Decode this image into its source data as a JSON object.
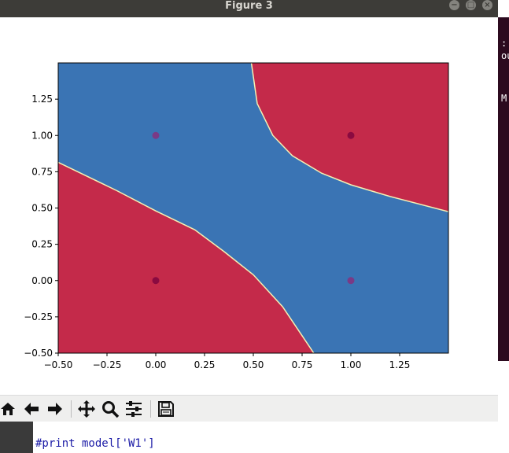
{
  "window": {
    "title": "Figure 3",
    "buttons": {
      "minimize": "−",
      "maximize": "□",
      "close": "×"
    }
  },
  "terminal": {
    "fragments": [
      ":",
      "ou",
      "M"
    ]
  },
  "chart_data": {
    "type": "contour",
    "xlim": [
      -0.5,
      1.5
    ],
    "ylim": [
      -0.5,
      1.5
    ],
    "xticks": [
      -0.5,
      -0.25,
      0.0,
      0.25,
      0.5,
      0.75,
      1.0,
      1.25
    ],
    "yticks": [
      -0.5,
      -0.25,
      0.0,
      0.25,
      0.5,
      0.75,
      1.0,
      1.25
    ],
    "xtick_labels": [
      "−0.50",
      "−0.25",
      "0.00",
      "0.25",
      "0.50",
      "0.75",
      "1.00",
      "1.25"
    ],
    "ytick_labels": [
      "−0.50",
      "−0.25",
      "0.00",
      "0.25",
      "0.50",
      "0.75",
      "1.00",
      "1.25"
    ],
    "colors": {
      "class_0": "#3a74b4",
      "class_1": "#c42a4a",
      "boundary": "#f4f0b4"
    },
    "regions": [
      {
        "class": "class_1",
        "location": "bottom-left"
      },
      {
        "class": "class_1",
        "location": "top-right"
      },
      {
        "class": "class_0",
        "location": "diagonal band"
      }
    ],
    "points": [
      {
        "x": 0,
        "y": 0,
        "color": "#8a0a40"
      },
      {
        "x": 0,
        "y": 1,
        "color": "#7a3a86"
      },
      {
        "x": 1,
        "y": 0,
        "color": "#7a3a86"
      },
      {
        "x": 1,
        "y": 1,
        "color": "#8a0a40"
      }
    ],
    "grid": false
  },
  "toolbar": {
    "buttons": [
      {
        "name": "home-button",
        "icon": "home-icon"
      },
      {
        "name": "back-button",
        "icon": "arrow-left-icon"
      },
      {
        "name": "forward-button",
        "icon": "arrow-right-icon"
      },
      {
        "name": "pan-button",
        "icon": "move-icon"
      },
      {
        "name": "zoom-button",
        "icon": "magnifier-icon"
      },
      {
        "name": "configure-subplots-button",
        "icon": "sliders-icon"
      },
      {
        "name": "save-button",
        "icon": "floppy-icon"
      }
    ]
  },
  "editor": {
    "code_line": "#print model['W1']"
  }
}
